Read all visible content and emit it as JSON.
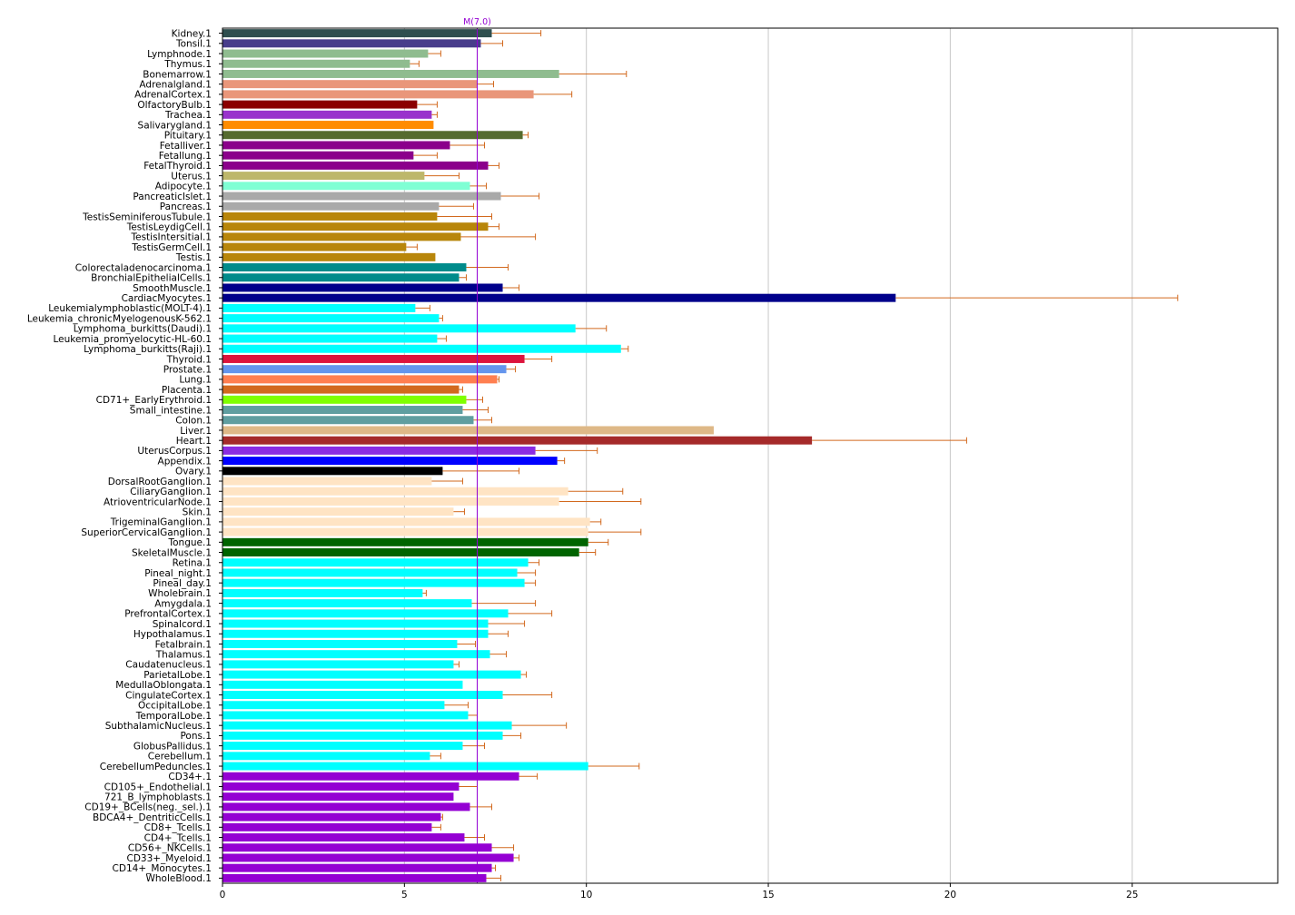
{
  "chart_data": {
    "type": "bar",
    "orientation": "horizontal",
    "title": "",
    "xlabel": "",
    "ylabel": "",
    "xlim": [
      0,
      29
    ],
    "xticks": [
      0,
      5,
      10,
      15,
      20,
      25
    ],
    "grid": "vertical",
    "median_line": {
      "label": "M(7.0)",
      "value": 7.0,
      "color": "#9400d3"
    },
    "errorbar_color": "#d2691e",
    "categories": [
      "Kidney.1",
      "Tonsil.1",
      "Lymphnode.1",
      "Thymus.1",
      "Bonemarrow.1",
      "Adrenalgland.1",
      "AdrenalCortex.1",
      "OlfactoryBulb.1",
      "Trachea.1",
      "Salivarygland.1",
      "Pituitary.1",
      "Fetalliver.1",
      "Fetallung.1",
      "FetalThyroid.1",
      "Uterus.1",
      "Adipocyte.1",
      "PancreaticIslet.1",
      "Pancreas.1",
      "TestisSeminiferousTubule.1",
      "TestisLeydigCell.1",
      "TestisIntersitial.1",
      "TestisGermCell.1",
      "Testis.1",
      "Colorectaladenocarcinoma.1",
      "BronchialEpithelialCells.1",
      "SmoothMuscle.1",
      "CardiacMyocytes.1",
      "Leukemialymphoblastic(MOLT-4).1",
      "Leukemia_chronicMyelogenousK-562.1",
      "Lymphoma_burkitts(Daudi).1",
      "Leukemia_promyelocytic-HL-60.1",
      "Lymphoma_burkitts(Raji).1",
      "Thyroid.1",
      "Prostate.1",
      "Lung.1",
      "Placenta.1",
      "CD71+_EarlyErythroid.1",
      "Small_intestine.1",
      "Colon.1",
      "Liver.1",
      "Heart.1",
      "UterusCorpus.1",
      "Appendix.1",
      "Ovary.1",
      "DorsalRootGanglion.1",
      "CiliaryGanglion.1",
      "AtrioventricularNode.1",
      "Skin.1",
      "TrigeminalGanglion.1",
      "SuperiorCervicalGanglion.1",
      "Tongue.1",
      "SkeletalMuscle.1",
      "Retina.1",
      "Pineal_night.1",
      "Pineal_day.1",
      "Wholebrain.1",
      "Amygdala.1",
      "PrefrontalCortex.1",
      "Spinalcord.1",
      "Hypothalamus.1",
      "Fetalbrain.1",
      "Thalamus.1",
      "Caudatenucleus.1",
      "ParietalLobe.1",
      "MedullaOblongata.1",
      "CingulateCortex.1",
      "OccipitalLobe.1",
      "TemporalLobe.1",
      "SubthalamicNucleus.1",
      "Pons.1",
      "GlobusPallidus.1",
      "Cerebellum.1",
      "CerebellumPeduncles.1",
      "CD34+.1",
      "CD105+_Endothelial.1",
      "721_B_lymphoblasts.1",
      "CD19+_BCells(neg._sel.).1",
      "BDCA4+_DentriticCells.1",
      "CD8+_Tcells.1",
      "CD4+_Tcells.1",
      "CD56+_NKCells.1",
      "CD33+_Myeloid.1",
      "CD14+_Monocytes.1",
      "WholeBlood.1"
    ],
    "values": [
      7.4,
      7.1,
      5.65,
      5.15,
      9.25,
      7.0,
      8.55,
      5.35,
      5.75,
      5.8,
      8.25,
      6.25,
      5.25,
      7.3,
      5.55,
      6.8,
      7.65,
      5.95,
      5.9,
      7.3,
      6.55,
      5.05,
      5.85,
      6.7,
      6.5,
      7.7,
      18.5,
      5.3,
      5.95,
      9.7,
      5.9,
      10.95,
      8.3,
      7.8,
      7.55,
      6.5,
      6.7,
      6.6,
      6.9,
      13.5,
      16.2,
      8.6,
      9.2,
      6.05,
      5.75,
      9.5,
      9.25,
      6.35,
      10.1,
      10.05,
      10.05,
      9.8,
      8.4,
      8.1,
      8.3,
      5.5,
      6.85,
      7.85,
      7.3,
      7.3,
      6.45,
      7.35,
      6.35,
      8.2,
      6.6,
      7.7,
      6.1,
      6.75,
      7.95,
      7.7,
      6.6,
      5.7,
      10.05,
      8.15,
      6.5,
      6.35,
      6.8,
      6.0,
      5.75,
      6.65,
      7.4,
      8.0,
      7.4,
      7.25
    ],
    "errors": [
      1.35,
      0.6,
      0.35,
      0.25,
      1.85,
      0.45,
      1.05,
      0.55,
      0.15,
      0.0,
      0.15,
      0.95,
      0.65,
      0.3,
      0.95,
      0.45,
      1.05,
      0.95,
      1.5,
      0.3,
      2.05,
      0.3,
      0.0,
      1.15,
      0.2,
      0.45,
      7.75,
      0.4,
      0.1,
      0.85,
      0.25,
      0.2,
      0.75,
      0.25,
      0.05,
      0.1,
      0.45,
      0.7,
      0.5,
      0.0,
      4.25,
      1.7,
      0.2,
      2.1,
      0.85,
      1.5,
      2.25,
      0.3,
      0.3,
      1.45,
      0.55,
      0.45,
      0.3,
      0.5,
      0.3,
      0.1,
      1.75,
      1.2,
      1.0,
      0.55,
      0.5,
      0.45,
      0.15,
      0.15,
      0.0,
      1.35,
      0.65,
      0.25,
      1.5,
      0.5,
      0.6,
      0.3,
      1.4,
      0.5,
      0.5,
      0.0,
      0.6,
      0.05,
      0.25,
      0.55,
      0.6,
      0.15,
      0.1,
      0.4
    ],
    "colors": [
      "#2f4f4f",
      "#483d8b",
      "#8fbc8f",
      "#8fbc8f",
      "#8fbc8f",
      "#e9967a",
      "#e9967a",
      "#8b0000",
      "#9932cc",
      "#ff8c00",
      "#556b2f",
      "#8b008b",
      "#8b008b",
      "#8b008b",
      "#bdb76b",
      "#7fffd4",
      "#a9a9a9",
      "#a9a9a9",
      "#b8860b",
      "#b8860b",
      "#b8860b",
      "#b8860b",
      "#b8860b",
      "#008b8b",
      "#008b8b",
      "#00008b",
      "#00008b",
      "#00ffff",
      "#00ffff",
      "#00ffff",
      "#00ffff",
      "#00ffff",
      "#dc143c",
      "#6495ed",
      "#ff7f50",
      "#d2691e",
      "#7fff00",
      "#5f9ea0",
      "#5f9ea0",
      "#deb887",
      "#a52a2a",
      "#8a2be2",
      "#0000ff",
      "#000000",
      "#ffe4c4",
      "#ffe4c4",
      "#ffe4c4",
      "#ffe4c4",
      "#ffe4c4",
      "#ffe4c4",
      "#006400",
      "#006400",
      "#00ffff",
      "#00ffff",
      "#00ffff",
      "#00ffff",
      "#00ffff",
      "#00ffff",
      "#00ffff",
      "#00ffff",
      "#00ffff",
      "#00ffff",
      "#00ffff",
      "#00ffff",
      "#00ffff",
      "#00ffff",
      "#00ffff",
      "#00ffff",
      "#00ffff",
      "#00ffff",
      "#00ffff",
      "#00ffff",
      "#00ffff",
      "#9400d3",
      "#9400d3",
      "#9400d3",
      "#9400d3",
      "#9400d3",
      "#9400d3",
      "#9400d3",
      "#9400d3",
      "#9400d3",
      "#9400d3",
      "#9400d3"
    ]
  }
}
